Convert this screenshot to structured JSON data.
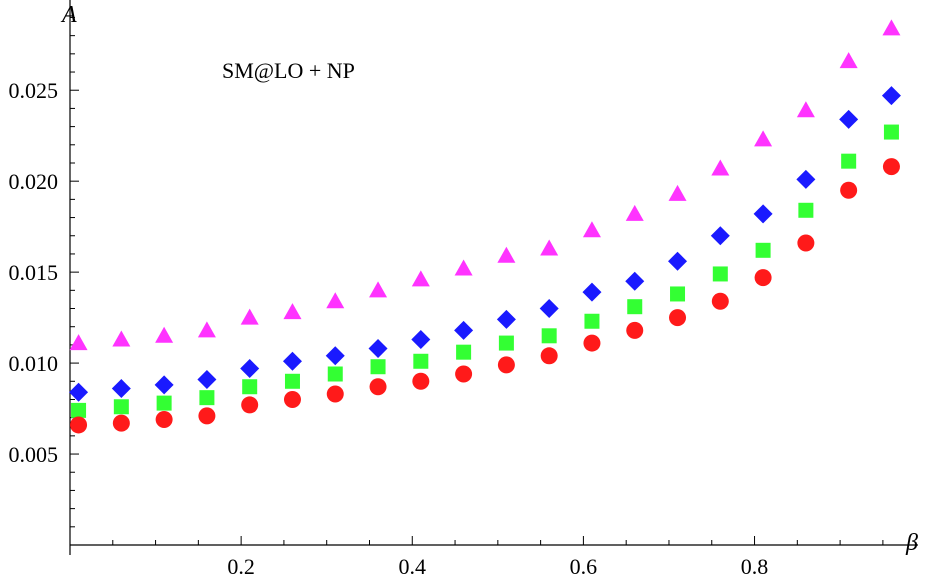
{
  "chart_data": {
    "type": "scatter",
    "xlabel": "β",
    "ylabel": "A",
    "annotation": "SM@LO + NP",
    "xlim": [
      0,
      0.97
    ],
    "ylim": [
      0,
      0.0293
    ],
    "x_ticks": [
      "0.2",
      "0.4",
      "0.6",
      "0.8"
    ],
    "y_ticks": [
      "0.005",
      "0.010",
      "0.015",
      "0.020",
      "0.025"
    ],
    "grid": false,
    "x": [
      0.01,
      0.06,
      0.11,
      0.16,
      0.21,
      0.26,
      0.31,
      0.36,
      0.41,
      0.46,
      0.51,
      0.56,
      0.61,
      0.66,
      0.71,
      0.76,
      0.81,
      0.86,
      0.91,
      0.96
    ],
    "series": [
      {
        "marker": "triangle",
        "color": "#ff33ff",
        "values": [
          0.0111,
          0.0113,
          0.0115,
          0.0118,
          0.0125,
          0.0128,
          0.0134,
          0.014,
          0.0146,
          0.0152,
          0.0159,
          0.0163,
          0.0173,
          0.0182,
          0.0193,
          0.0207,
          0.0223,
          0.0239,
          0.0266,
          0.0284
        ]
      },
      {
        "marker": "diamond",
        "color": "#1a1aff",
        "values": [
          0.0084,
          0.0086,
          0.0088,
          0.0091,
          0.0097,
          0.0101,
          0.0104,
          0.0108,
          0.0113,
          0.0118,
          0.0124,
          0.013,
          0.0139,
          0.0145,
          0.0156,
          0.017,
          0.0182,
          0.0201,
          0.0234,
          0.0247
        ]
      },
      {
        "marker": "square",
        "color": "#33ff33",
        "values": [
          0.0074,
          0.0076,
          0.0078,
          0.0081,
          0.0087,
          0.009,
          0.0094,
          0.0098,
          0.0101,
          0.0106,
          0.0111,
          0.0115,
          0.0123,
          0.0131,
          0.0138,
          0.0149,
          0.0162,
          0.0184,
          0.0211,
          0.0227
        ]
      },
      {
        "marker": "circle",
        "color": "#ff1a1a",
        "values": [
          0.0066,
          0.0067,
          0.0069,
          0.0071,
          0.0077,
          0.008,
          0.0083,
          0.0087,
          0.009,
          0.0094,
          0.0099,
          0.0104,
          0.0111,
          0.0118,
          0.0125,
          0.0134,
          0.0147,
          0.0166,
          0.0195,
          0.0208
        ]
      }
    ]
  }
}
